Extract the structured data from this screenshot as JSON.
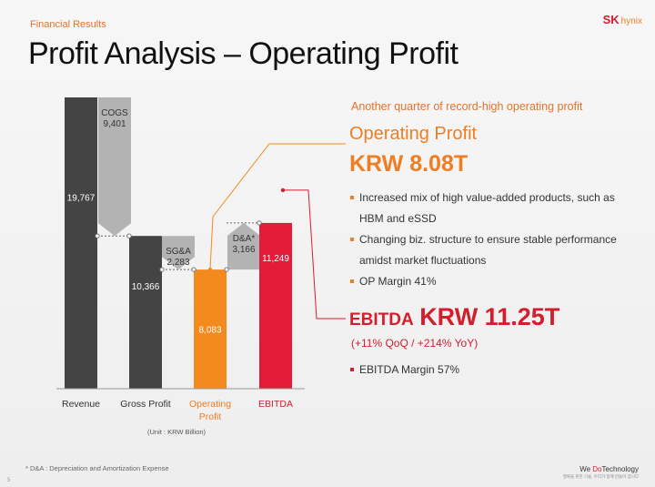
{
  "header": {
    "section": "Financial Results",
    "title": "Profit Analysis – Operating Profit",
    "logo_sk": "SK",
    "logo_hynix": "hynix"
  },
  "chart_data": {
    "type": "bar",
    "subtype": "waterfall",
    "categories": [
      "Revenue",
      "Gross Profit",
      "Operating Profit",
      "EBITDA"
    ],
    "bars": [
      {
        "name": "Revenue",
        "label": "19,767",
        "value": 19767,
        "base": 0,
        "color": "#444444"
      },
      {
        "name": "COGS",
        "label": "COGS\n9,401",
        "value": 9401,
        "base": 10366,
        "color": "#b3b3b3",
        "kind": "decrease"
      },
      {
        "name": "Gross Profit",
        "label": "10,366",
        "value": 10366,
        "base": 0,
        "color": "#444444"
      },
      {
        "name": "SG&A",
        "label": "SG&A\n2,283",
        "value": 2283,
        "base": 8083,
        "color": "#b3b3b3",
        "kind": "decrease"
      },
      {
        "name": "Operating Profit",
        "label": "8,083",
        "value": 8083,
        "base": 0,
        "color": "#f28a1e"
      },
      {
        "name": "D&A*",
        "label": "D&A*\n3,166",
        "value": 3166,
        "base": 8083,
        "color": "#b3b3b3",
        "kind": "increase"
      },
      {
        "name": "EBITDA",
        "label": "11,249",
        "value": 11249,
        "base": 0,
        "color": "#e31b39"
      }
    ],
    "category_colors": [
      "#333333",
      "#333333",
      "#ef7d22",
      "#d31e2d"
    ],
    "category_labels": [
      "Revenue",
      "Gross Profit",
      "Operating\nProfit",
      "EBITDA"
    ],
    "ylim": [
      0,
      19767
    ],
    "unit_label": "(Unit : KRW Billion)",
    "grid": false
  },
  "panel": {
    "subhead": "Another quarter of record-high operating profit",
    "op_label": "Operating Profit",
    "op_value": "KRW 8.08T",
    "op_bullets": [
      "Increased mix of high value-added products, such as HBM and eSSD",
      "Changing biz. structure to ensure stable performance amidst market fluctuations",
      "OP Margin 41%"
    ],
    "ebitda_label": "EBITDA",
    "ebitda_value": "KRW 11.25T",
    "ebitda_growth": "(+11% QoQ / +214% YoY)",
    "ebitda_bullets": [
      "EBITDA Margin 57%"
    ]
  },
  "footer": {
    "footnote": "* D&A : Depreciation and Amortization Expense",
    "page": "5",
    "tagline_pre": "We ",
    "tagline_do": "Do",
    "tagline_post": "Technology",
    "tagline_sub": "행복을 위한 기술, 우리가 함께 만들어 갑니다"
  },
  "colors": {
    "orange": "#ef7d22",
    "red": "#d31e2d",
    "dark_bar": "#444444",
    "grey_bar": "#b3b3b3"
  }
}
